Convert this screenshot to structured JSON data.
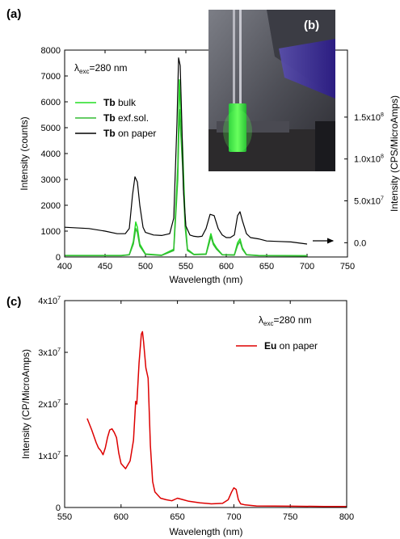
{
  "panel_labels": {
    "a": "(a)",
    "b": "(b)",
    "c": "(c)"
  },
  "colors": {
    "tb_bulk": "#22dd22",
    "tb_exf": "#33bb33",
    "tb_paper": "#000000",
    "eu_paper": "#dd0000"
  },
  "annotations": {
    "a_excitation": {
      "lambda": "λ",
      "sub": "exc",
      "rest": "=280 nm"
    },
    "c_excitation": {
      "lambda": "λ",
      "sub": "exc",
      "rest": "=280 nm"
    }
  },
  "photo": {
    "description_icon": "cuvette-photo-icon"
  },
  "chart_data": [
    {
      "type": "line",
      "panel": "(a)",
      "xlabel": "Wavelength (nm)",
      "ylabel": "Intensity (counts)",
      "ylabel_right": "Intensity (CPS/MicroAmps)",
      "xlim": [
        400,
        750
      ],
      "ylim": [
        0,
        8000
      ],
      "ylim_right": [
        -17000000.0,
        230000000.0
      ],
      "x_ticks": [
        "400",
        "450",
        "500",
        "550",
        "600",
        "650",
        "700",
        "750"
      ],
      "y_ticks": [
        "0",
        "1000",
        "2000",
        "3000",
        "4000",
        "5000",
        "6000",
        "7000",
        "8000"
      ],
      "y_right_ticks": [
        {
          "value": 0,
          "base": "0.0",
          "exp": ""
        },
        {
          "value": 50000000,
          "base": "5.0x10",
          "exp": "7"
        },
        {
          "value": 100000000,
          "base": "1.0x10",
          "exp": "8"
        },
        {
          "value": 150000000,
          "base": "1.5x10",
          "exp": "8"
        }
      ],
      "legend": [
        {
          "bold": "Tb",
          "rest": " bulk"
        },
        {
          "bold": "Tb",
          "rest": " exf.sol."
        },
        {
          "bold": "Tb",
          "rest": " on paper"
        }
      ],
      "legend_position": "top-left",
      "series": [
        {
          "key": "bulk",
          "axis": "left",
          "x": [
            400,
            470,
            480,
            485,
            488,
            490,
            493,
            500,
            520,
            535,
            540,
            542,
            544,
            546,
            549,
            552,
            560,
            575,
            579,
            581,
            584,
            588,
            595,
            610,
            614,
            617,
            620,
            625,
            640,
            700
          ],
          "y": [
            60,
            60,
            90,
            600,
            1350,
            1150,
            500,
            120,
            70,
            300,
            3500,
            6850,
            5400,
            4200,
            1500,
            300,
            100,
            120,
            650,
            900,
            550,
            350,
            90,
            80,
            550,
            700,
            350,
            90,
            60,
            50
          ]
        },
        {
          "key": "exf",
          "axis": "left",
          "x": [
            400,
            470,
            480,
            485,
            488,
            490,
            493,
            500,
            520,
            535,
            540,
            542,
            544,
            546,
            549,
            552,
            560,
            575,
            579,
            581,
            584,
            588,
            595,
            610,
            614,
            617,
            620,
            625,
            640,
            700
          ],
          "y": [
            50,
            50,
            80,
            500,
            1100,
            950,
            420,
            100,
            60,
            250,
            3000,
            5700,
            4600,
            3500,
            1200,
            250,
            90,
            100,
            550,
            800,
            480,
            300,
            80,
            70,
            450,
            600,
            300,
            80,
            50,
            40
          ]
        },
        {
          "key": "paper",
          "axis": "left",
          "x": [
            400,
            430,
            450,
            465,
            475,
            480,
            484,
            487,
            490,
            493,
            497,
            500,
            510,
            520,
            530,
            535,
            539,
            541,
            543,
            545,
            547,
            550,
            555,
            560,
            565,
            570,
            575,
            580,
            585,
            590,
            595,
            600,
            605,
            610,
            614,
            617,
            620,
            625,
            630,
            640,
            650,
            665,
            680,
            700
          ],
          "y": [
            1150,
            1100,
            1000,
            900,
            900,
            1100,
            2400,
            3100,
            2900,
            2000,
            1150,
            950,
            850,
            830,
            900,
            1500,
            5200,
            7700,
            7400,
            5200,
            2600,
            1200,
            850,
            800,
            780,
            800,
            1100,
            1650,
            1600,
            1100,
            850,
            750,
            750,
            850,
            1600,
            1750,
            1400,
            900,
            750,
            700,
            620,
            600,
            580,
            500
          ]
        }
      ]
    },
    {
      "type": "line",
      "panel": "(c)",
      "xlabel": "Wavelength (nm)",
      "ylabel": "Intensity (CP/MicroAmps)",
      "xlim": [
        550,
        800
      ],
      "ylim": [
        0,
        40000000
      ],
      "x_ticks": [
        "550",
        "600",
        "650",
        "700",
        "750",
        "800"
      ],
      "y_ticks": [
        {
          "value": 0,
          "base": "0",
          "exp": ""
        },
        {
          "value": 10000000,
          "base": "1x10",
          "exp": "7"
        },
        {
          "value": 20000000,
          "base": "2x10",
          "exp": "7"
        },
        {
          "value": 30000000,
          "base": "3x10",
          "exp": "7"
        },
        {
          "value": 40000000,
          "base": "4x10",
          "exp": "7"
        }
      ],
      "legend": [
        {
          "bold": "Eu",
          "rest": " on paper"
        }
      ],
      "legend_position": "top-right",
      "series": [
        {
          "key": "eu",
          "x": [
            570,
            574,
            578,
            580,
            582,
            584,
            586,
            588,
            590,
            592,
            594,
            596,
            598,
            600,
            604,
            608,
            611,
            613,
            614,
            616,
            618,
            619,
            620,
            622,
            624,
            626,
            628,
            630,
            635,
            640,
            645,
            650,
            655,
            660,
            670,
            680,
            690,
            695,
            698,
            700,
            702,
            704,
            706,
            710,
            720,
            750,
            780,
            800
          ],
          "y": [
            17200000,
            15000000,
            12500000,
            11500000,
            11000000,
            10200000,
            11500000,
            13500000,
            15000000,
            15200000,
            14500000,
            13500000,
            10500000,
            8500000,
            7500000,
            9000000,
            13000000,
            20500000,
            20000000,
            28000000,
            33500000,
            34000000,
            32000000,
            27000000,
            25000000,
            12000000,
            5000000,
            3000000,
            1800000,
            1500000,
            1300000,
            1800000,
            1500000,
            1200000,
            900000,
            700000,
            800000,
            1500000,
            3000000,
            3800000,
            3500000,
            1500000,
            700000,
            500000,
            300000,
            250000,
            200000,
            200000
          ]
        }
      ]
    }
  ]
}
